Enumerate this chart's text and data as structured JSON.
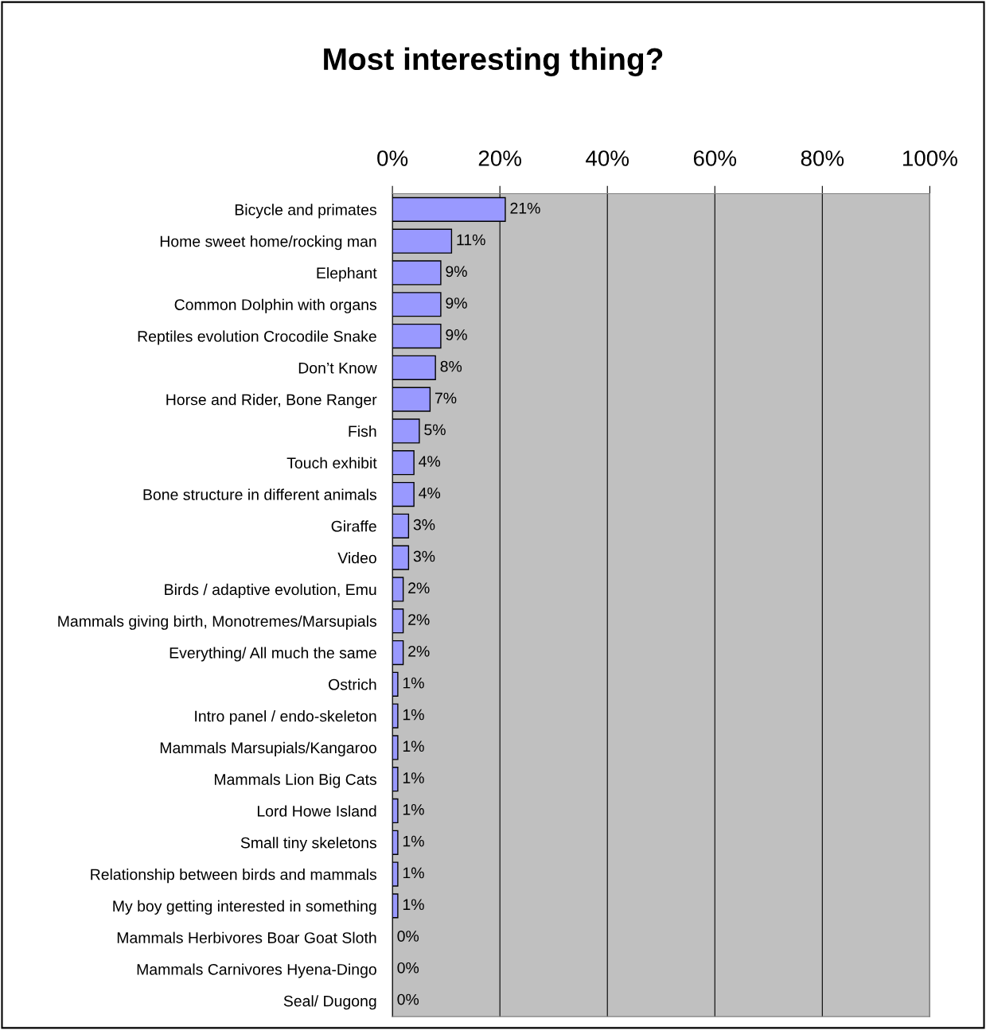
{
  "chart_data": {
    "type": "bar",
    "orientation": "horizontal",
    "title": "Most interesting thing?",
    "categories": [
      "Bicycle and primates",
      "Home sweet home/rocking man",
      "Elephant",
      "Common Dolphin with organs",
      "Reptiles evolution Crocodile Snake",
      "Don’t Know",
      "Horse and Rider, Bone Ranger",
      "Fish",
      "Touch exhibit",
      "Bone structure in different animals",
      "Giraffe",
      "Video",
      "Birds / adaptive evolution, Emu",
      "Mammals giving birth, Monotremes/Marsupials",
      "Everything/ All much the same",
      "Ostrich",
      "Intro panel / endo-skeleton",
      "Mammals Marsupials/Kangaroo",
      "Mammals Lion Big Cats",
      "Lord Howe Island",
      "Small tiny skeletons",
      "Relationship between birds and mammals",
      "My boy getting interested in something",
      "Mammals Herbivores Boar Goat Sloth",
      "Mammals Carnivores Hyena-Dingo",
      "Seal/ Dugong"
    ],
    "values": [
      21,
      11,
      9,
      9,
      9,
      8,
      7,
      5,
      4,
      4,
      3,
      3,
      2,
      2,
      2,
      1,
      1,
      1,
      1,
      1,
      1,
      1,
      1,
      0,
      0,
      0
    ],
    "value_labels": [
      "21%",
      "11%",
      "9%",
      "9%",
      "9%",
      "8%",
      "7%",
      "5%",
      "4%",
      "4%",
      "3%",
      "3%",
      "2%",
      "2%",
      "2%",
      "1%",
      "1%",
      "1%",
      "1%",
      "1%",
      "1%",
      "1%",
      "1%",
      "0%",
      "0%",
      "0%"
    ],
    "color": "#9999ff",
    "xlim": [
      0,
      100
    ],
    "xticks": [
      {
        "value": 0,
        "label": "0%"
      },
      {
        "value": 20,
        "label": "20%"
      },
      {
        "value": 40,
        "label": "40%"
      },
      {
        "value": 60,
        "label": "60%"
      },
      {
        "value": 80,
        "label": "80%"
      },
      {
        "value": 100,
        "label": "100%"
      }
    ],
    "grid": "x"
  }
}
